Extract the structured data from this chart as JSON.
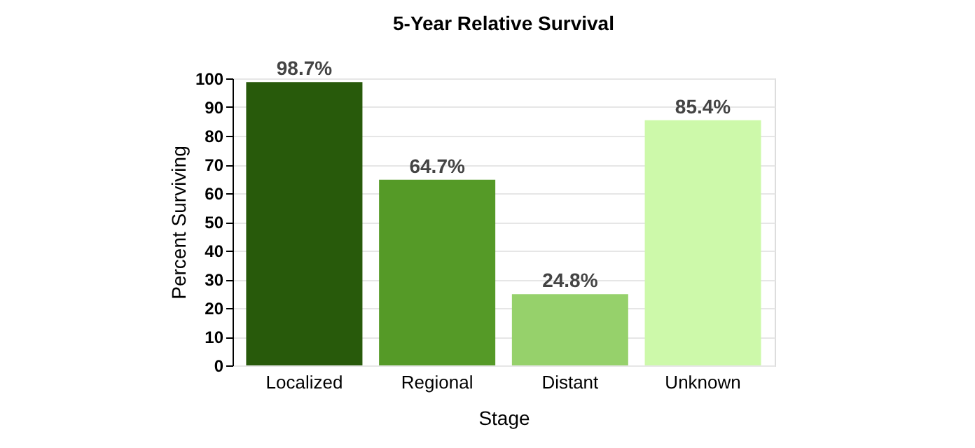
{
  "chart_data": {
    "type": "bar",
    "title": "5-Year Relative Survival",
    "xlabel": "Stage",
    "ylabel": "Percent Surviving",
    "categories": [
      "Localized",
      "Regional",
      "Distant",
      "Unknown"
    ],
    "values": [
      98.7,
      64.7,
      24.8,
      85.4
    ],
    "colors": [
      "#285a0b",
      "#559a27",
      "#96d16b",
      "#cdf9aa"
    ],
    "value_labels": [
      "98.7%",
      "64.7%",
      "24.8%",
      "85.4%"
    ],
    "ylim": [
      0,
      100
    ],
    "yticks": [
      0,
      10,
      20,
      30,
      40,
      50,
      60,
      70,
      80,
      90,
      100
    ],
    "grid": "y"
  }
}
